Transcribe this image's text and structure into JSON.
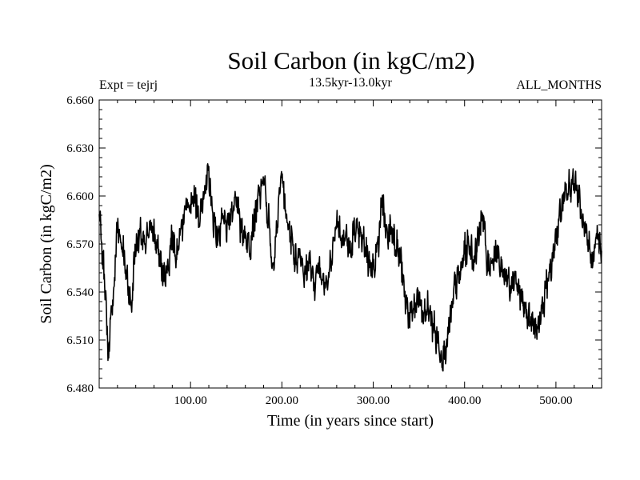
{
  "chart_data": {
    "type": "line",
    "title": "Soil Carbon (in kgC/m2)",
    "subtitle_left": "Expt = tejrj",
    "subtitle_center": "13.5kyr-13.0kyr",
    "subtitle_right": "ALL_MONTHS",
    "xlabel": "Time (in years since start)",
    "ylabel": "Soil Carbon (in kgC/m2)",
    "xlim": [
      0,
      550
    ],
    "ylim": [
      6.48,
      6.66
    ],
    "x_tick_values": [
      100,
      200,
      300,
      400,
      500
    ],
    "x_tick_labels": [
      "100.00",
      "200.00",
      "300.00",
      "400.00",
      "500.00"
    ],
    "y_tick_values": [
      6.48,
      6.51,
      6.54,
      6.57,
      6.6,
      6.63,
      6.66
    ],
    "y_tick_labels": [
      "6.480",
      "6.510",
      "6.540",
      "6.570",
      "6.600",
      "6.630",
      "6.660"
    ],
    "series": [
      {
        "name": "Soil Carbon",
        "color": "#000000",
        "x": [
          0,
          5,
          10,
          15,
          20,
          25,
          30,
          35,
          40,
          45,
          50,
          55,
          60,
          65,
          70,
          75,
          80,
          85,
          90,
          95,
          100,
          105,
          110,
          115,
          120,
          125,
          130,
          135,
          140,
          145,
          150,
          155,
          160,
          165,
          170,
          175,
          180,
          185,
          190,
          195,
          200,
          205,
          210,
          215,
          220,
          225,
          230,
          235,
          240,
          245,
          250,
          255,
          260,
          265,
          270,
          275,
          280,
          285,
          290,
          295,
          300,
          305,
          310,
          315,
          320,
          325,
          330,
          335,
          340,
          345,
          350,
          355,
          360,
          365,
          370,
          375,
          380,
          385,
          390,
          395,
          400,
          405,
          410,
          415,
          420,
          425,
          430,
          435,
          440,
          445,
          450,
          455,
          460,
          465,
          470,
          475,
          480,
          485,
          490,
          495,
          500,
          505,
          510,
          515,
          520,
          525,
          530,
          535,
          540,
          545,
          550
        ],
        "values": [
          6.585,
          6.555,
          6.505,
          6.535,
          6.58,
          6.57,
          6.55,
          6.532,
          6.57,
          6.575,
          6.568,
          6.582,
          6.575,
          6.565,
          6.55,
          6.555,
          6.575,
          6.565,
          6.58,
          6.595,
          6.59,
          6.6,
          6.585,
          6.605,
          6.612,
          6.585,
          6.575,
          6.585,
          6.58,
          6.59,
          6.6,
          6.58,
          6.575,
          6.57,
          6.585,
          6.6,
          6.61,
          6.585,
          6.555,
          6.585,
          6.615,
          6.585,
          6.575,
          6.56,
          6.565,
          6.55,
          6.56,
          6.545,
          6.555,
          6.55,
          6.545,
          6.565,
          6.585,
          6.575,
          6.575,
          6.565,
          6.58,
          6.575,
          6.57,
          6.56,
          6.555,
          6.57,
          6.595,
          6.575,
          6.58,
          6.57,
          6.56,
          6.535,
          6.525,
          6.53,
          6.535,
          6.525,
          6.53,
          6.52,
          6.51,
          6.5,
          6.505,
          6.525,
          6.545,
          6.55,
          6.565,
          6.57,
          6.56,
          6.575,
          6.59,
          6.555,
          6.56,
          6.565,
          6.555,
          6.55,
          6.545,
          6.55,
          6.54,
          6.53,
          6.525,
          6.52,
          6.515,
          6.53,
          6.545,
          6.555,
          6.575,
          6.59,
          6.6,
          6.605,
          6.61,
          6.6,
          6.58,
          6.57,
          6.56,
          6.575,
          6.565
        ]
      }
    ]
  }
}
